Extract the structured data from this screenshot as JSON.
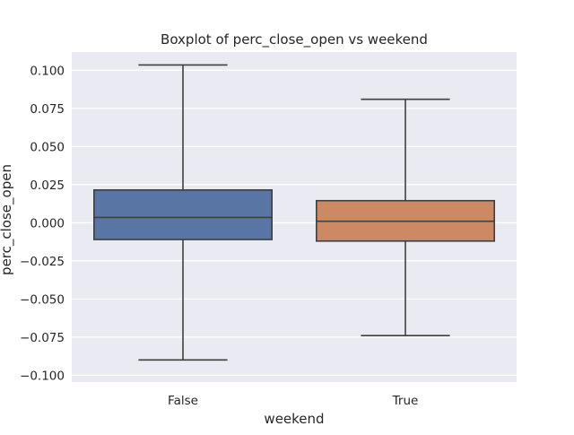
{
  "chart_data": {
    "type": "boxplot",
    "title": "Boxplot of perc_close_open vs weekend",
    "xlabel": "weekend",
    "ylabel": "perc_close_open",
    "ylim": [
      -0.1045,
      0.112
    ],
    "yticks": [
      0.1,
      0.075,
      0.05,
      0.025,
      0.0,
      -0.025,
      -0.05,
      -0.075,
      -0.1
    ],
    "ytick_labels": [
      "0.100",
      "0.075",
      "0.050",
      "0.025",
      "0.000",
      "−0.025",
      "−0.050",
      "−0.075",
      "−0.100"
    ],
    "grid": true,
    "categories": [
      "False",
      "True"
    ],
    "boxes": [
      {
        "category": "False",
        "whisker_low": -0.09,
        "q1": -0.011,
        "median": 0.0035,
        "q3": 0.0215,
        "whisker_high": 0.1035,
        "color": "#5975a4"
      },
      {
        "category": "True",
        "whisker_low": -0.074,
        "q1": -0.012,
        "median": 0.001,
        "q3": 0.0145,
        "whisker_high": 0.081,
        "color": "#cc8963"
      }
    ]
  },
  "colors": {
    "plot_background": "#eaeaf2",
    "grid": "#ffffff",
    "line": "#3f3f3f"
  }
}
